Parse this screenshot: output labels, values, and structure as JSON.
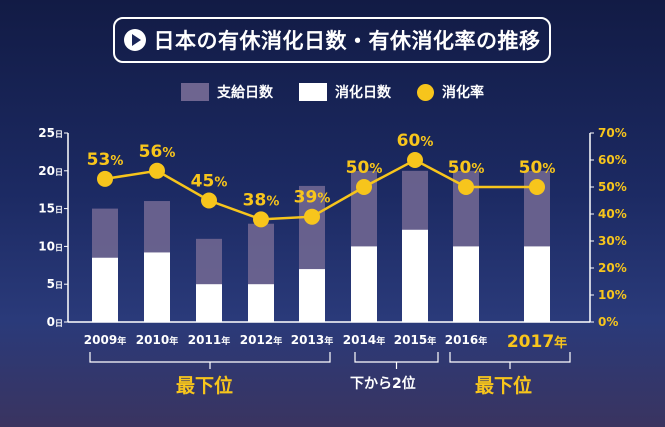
{
  "title": "日本の有休消化日数・有休消化率の推移",
  "colors": {
    "paid": "#6e6590",
    "used": "#ffffff",
    "rate": "#f7c51c",
    "axis": "#ffffff"
  },
  "chart_data": {
    "type": "bar",
    "categories": [
      "2009年",
      "2010年",
      "2011年",
      "2012年",
      "2013年",
      "2014年",
      "2015年",
      "2016年",
      "2017年"
    ],
    "series": [
      {
        "name": "支給日数",
        "type": "bar",
        "values": [
          15,
          16,
          11,
          13,
          18,
          20,
          20,
          20,
          20
        ]
      },
      {
        "name": "消化日数",
        "type": "bar",
        "values": [
          8.5,
          9.2,
          5,
          5,
          7,
          10,
          12.2,
          10,
          10
        ]
      },
      {
        "name": "消化率",
        "type": "line",
        "axis": "right",
        "values": [
          53,
          56,
          45,
          38,
          39,
          50,
          60,
          50,
          50
        ],
        "labels": [
          "53%",
          "56%",
          "45%",
          "38%",
          "39%",
          "50%",
          "60%",
          "50%",
          "50%"
        ]
      }
    ],
    "y_left": {
      "ylim": [
        0,
        25
      ],
      "ticks": [
        "0日",
        "5日",
        "10日",
        "15日",
        "20日",
        "25日"
      ]
    },
    "y_right": {
      "ylim": [
        0,
        70
      ],
      "ticks": [
        "0%",
        "10%",
        "20%",
        "30%",
        "40%",
        "50%",
        "60%",
        "70%"
      ]
    },
    "legend_position": "top-center",
    "grid": false,
    "annotations": [
      {
        "text": "最下位",
        "years": [
          "2009年",
          "2013年"
        ]
      },
      {
        "text": "下から2位",
        "years": [
          "2014年",
          "2015年"
        ]
      },
      {
        "text": "最下位",
        "years": [
          "2016年",
          "2017年"
        ]
      }
    ]
  }
}
